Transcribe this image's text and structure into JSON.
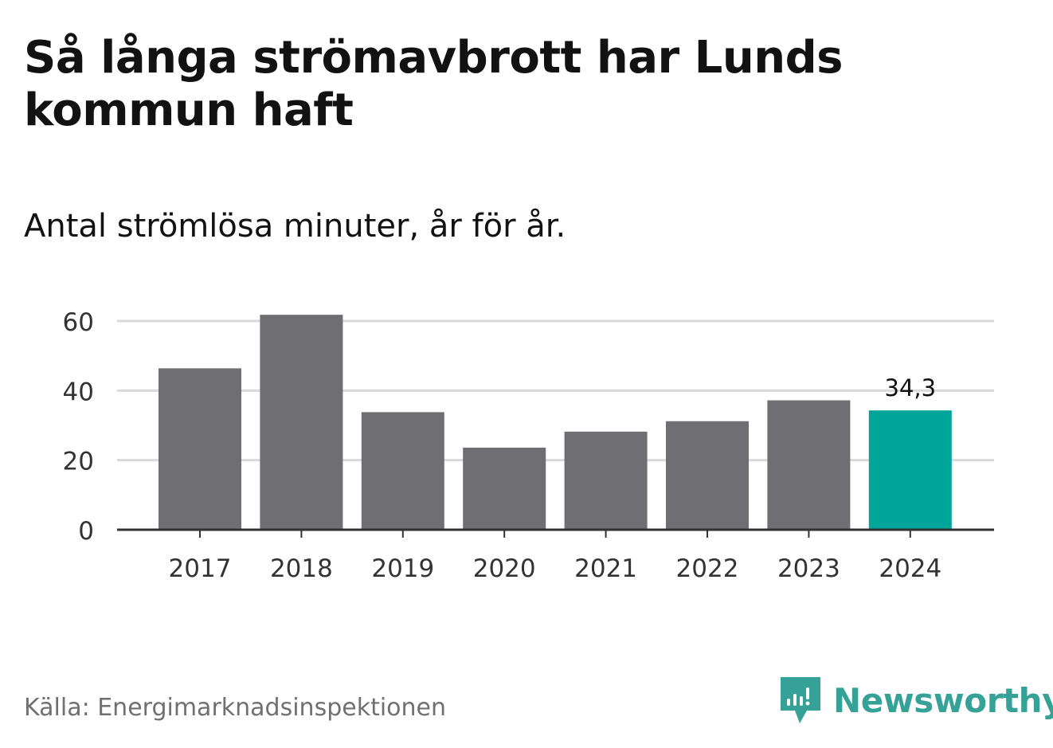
{
  "header": {
    "title": "Så långa strömavbrott har Lunds kommun haft",
    "subtitle": "Antal strömlösa minuter, år för år."
  },
  "footer": {
    "source": "Källa: Energimarknadsinspektionen",
    "brand": "Newsworthy",
    "brand_icon": "bar-chart-flag-icon",
    "brand_color": "#35a197"
  },
  "colors": {
    "bar": "#6f6e73",
    "highlight": "#00a59a",
    "grid": "#d9d9d9",
    "axis": "#333333"
  },
  "chart_data": {
    "type": "bar",
    "categories": [
      "2017",
      "2018",
      "2019",
      "2020",
      "2021",
      "2022",
      "2023",
      "2024"
    ],
    "values": [
      46.4,
      61.8,
      33.8,
      23.6,
      28.2,
      31.2,
      37.2,
      34.3
    ],
    "highlight_index": 7,
    "annotations": [
      {
        "category": "2024",
        "label": "34,3"
      }
    ],
    "yticks": [
      0,
      20,
      40,
      60
    ],
    "ylim": [
      0,
      60
    ],
    "title": "Så långa strömavbrott har Lunds kommun haft",
    "subtitle": "Antal strömlösa minuter, år för år.",
    "xlabel": "",
    "ylabel": "",
    "grid": true,
    "legend": "none"
  }
}
